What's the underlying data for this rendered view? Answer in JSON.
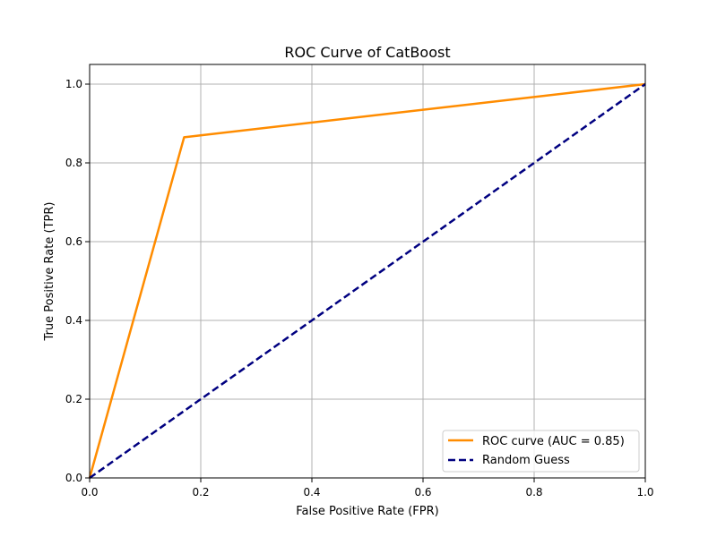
{
  "chart_data": {
    "type": "line",
    "title": "ROC Curve of CatBoost",
    "xlabel": "False Positive Rate (FPR)",
    "ylabel": "True Positive Rate (TPR)",
    "xlim": [
      0.0,
      1.0
    ],
    "ylim": [
      0.0,
      1.05
    ],
    "xticks": [
      0.0,
      0.2,
      0.4,
      0.6,
      0.8,
      1.0
    ],
    "yticks": [
      0.0,
      0.2,
      0.4,
      0.6,
      0.8,
      1.0
    ],
    "xtick_labels": [
      "0.0",
      "0.2",
      "0.4",
      "0.6",
      "0.8",
      "1.0"
    ],
    "ytick_labels": [
      "0.0",
      "0.2",
      "0.4",
      "0.6",
      "0.8",
      "1.0"
    ],
    "grid": true,
    "legend_position": "lower-right",
    "series": [
      {
        "name": "ROC curve (AUC = 0.85)",
        "color": "#ff8c00",
        "style": "solid",
        "x": [
          0.0,
          0.17,
          1.0
        ],
        "y": [
          0.0,
          0.865,
          1.0
        ]
      },
      {
        "name": "Random Guess",
        "color": "#000080",
        "style": "dashed",
        "x": [
          0.0,
          1.0
        ],
        "y": [
          0.0,
          1.0
        ]
      }
    ]
  }
}
